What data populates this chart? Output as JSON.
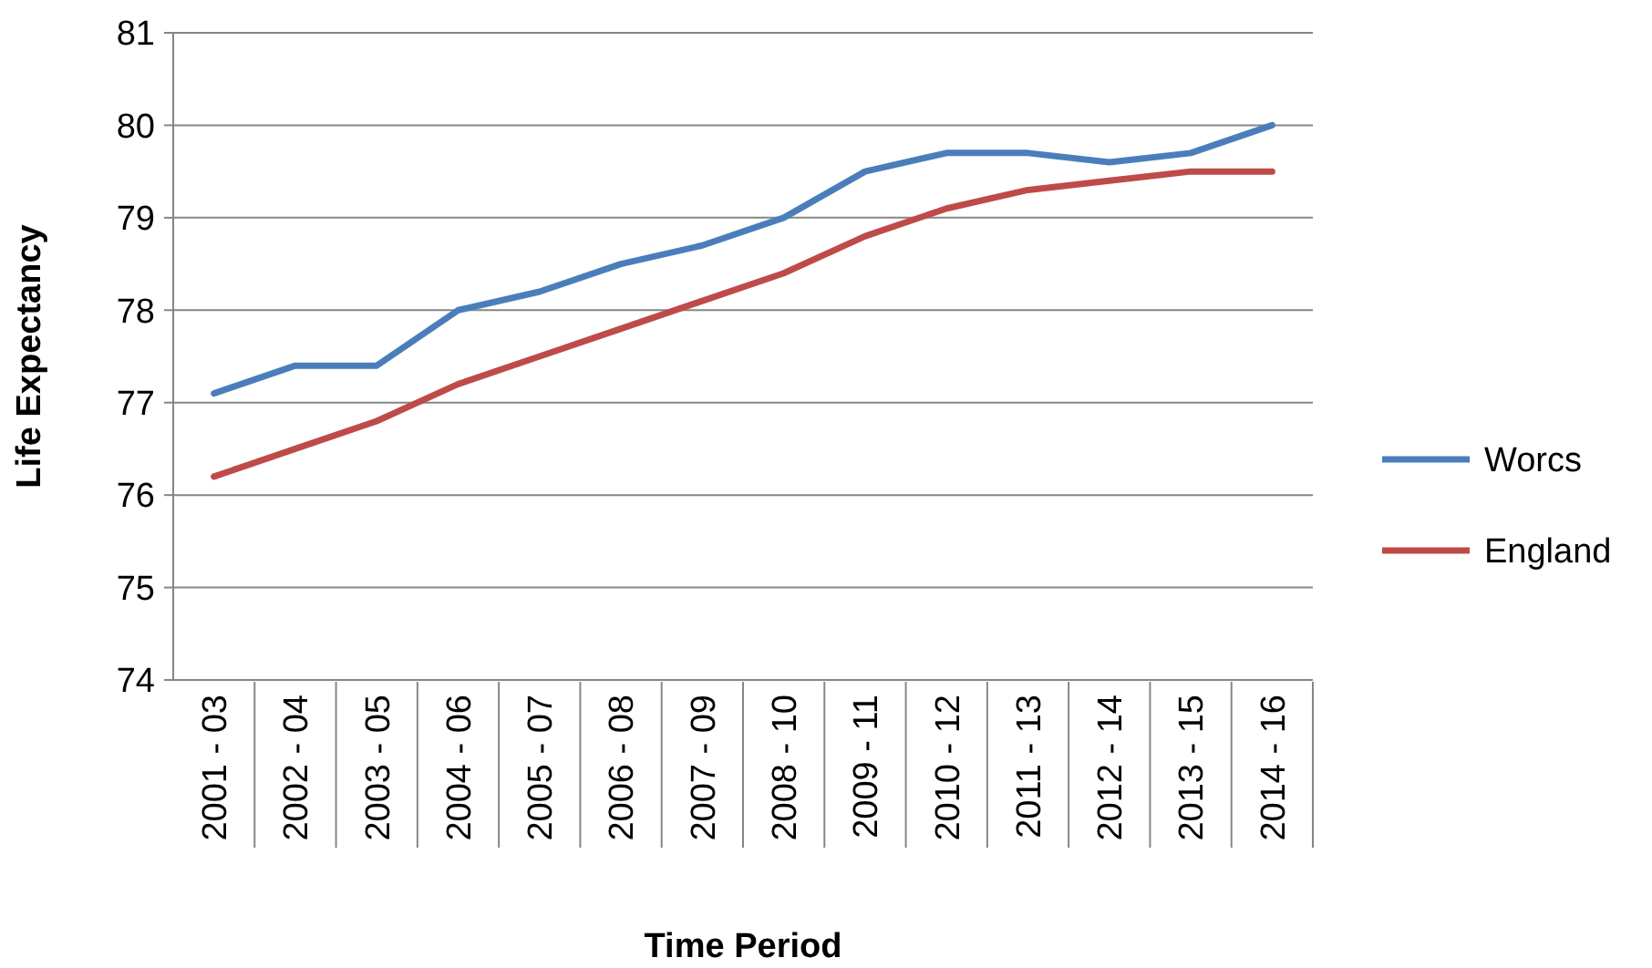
{
  "chart_data": {
    "type": "line",
    "xlabel": "Time Period",
    "ylabel": "Life Expectancy",
    "categories": [
      "2001 - 03",
      "2002 - 04",
      "2003 - 05",
      "2004 - 06",
      "2005 - 07",
      "2006 - 08",
      "2007 - 09",
      "2008 - 10",
      "2009 - 11",
      "2010 - 12",
      "2011 - 13",
      "2012 - 14",
      "2013 - 15",
      "2014 - 16"
    ],
    "series": [
      {
        "name": "Worcs",
        "color": "#4a7ebb",
        "values": [
          77.1,
          77.4,
          77.4,
          78.0,
          78.2,
          78.5,
          78.7,
          79.0,
          79.5,
          79.7,
          79.7,
          79.6,
          79.7,
          80.0
        ]
      },
      {
        "name": "England",
        "color": "#be4b48",
        "values": [
          76.2,
          76.5,
          76.8,
          77.2,
          77.5,
          77.8,
          78.1,
          78.4,
          78.8,
          79.1,
          79.3,
          79.4,
          79.5,
          79.5
        ]
      }
    ],
    "ylim": [
      74,
      81
    ],
    "yticks": [
      74,
      75,
      76,
      77,
      78,
      79,
      80,
      81
    ],
    "grid": "y",
    "legend": "right",
    "marker": "none",
    "line_style": "solid"
  }
}
